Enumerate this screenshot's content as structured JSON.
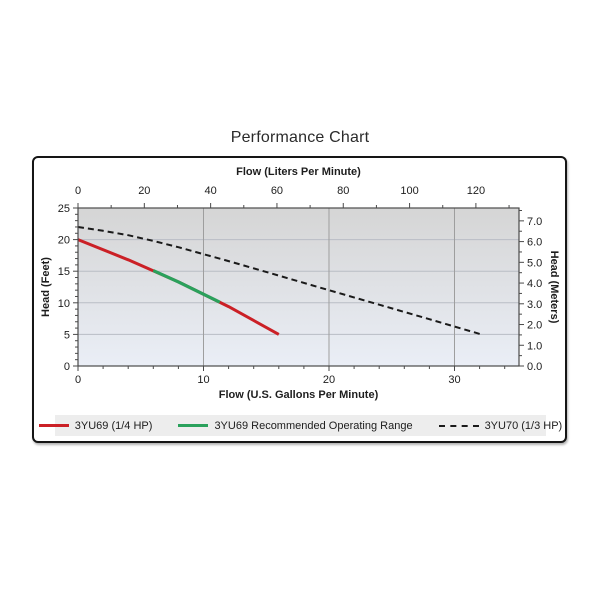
{
  "page": {
    "title": "Performance Chart"
  },
  "colors": {
    "red": "#cb2026",
    "green": "#2aa15c",
    "black": "#1a1a1a",
    "legend_bg": "#ededed",
    "plot_bg_top": "#d5d5d5",
    "plot_bg_bottom": "#eaeef6",
    "grid_vertical": "#9e9e9e",
    "grid_horizontal": "#b9bdc5",
    "axis": "#4a4a4a",
    "text": "#1d1d1d"
  },
  "chart_data": {
    "type": "line",
    "title": "Performance Chart",
    "x_axis_bottom": {
      "label": "Flow (U.S. Gallons Per Minute)",
      "min": 0,
      "max": 35.14,
      "major_ticks": [
        0,
        10,
        20,
        30
      ],
      "minor_step": 2
    },
    "x_axis_top": {
      "label": "Flow (Liters Per Minute)",
      "min": 0,
      "max": 133,
      "major_ticks": [
        0,
        20,
        40,
        60,
        80,
        100,
        120
      ],
      "minor_step": 10
    },
    "y_axis_left": {
      "label": "Head (Feet)",
      "min": 0,
      "max": 25,
      "major_ticks": [
        0,
        5,
        10,
        15,
        20,
        25
      ],
      "minor_step": 1
    },
    "y_axis_right": {
      "label": "Head (Meters)",
      "min": 0,
      "max": 7.62,
      "major_ticks": [
        0,
        1,
        2,
        3,
        4,
        5,
        6,
        7
      ],
      "tick_format": "0.0",
      "minor_step": 0.5
    },
    "grid": {
      "vertical_at": [
        10,
        20,
        30
      ],
      "horizontal_at": [
        5,
        10,
        15,
        20,
        25
      ]
    },
    "series": [
      {
        "name": "3YU69 (1/4 HP)",
        "color": "#cb2026",
        "style": "solid",
        "width": 3,
        "points": [
          [
            0,
            20
          ],
          [
            4,
            16.8
          ],
          [
            8,
            13.3
          ],
          [
            12,
            9.4
          ],
          [
            16,
            5
          ]
        ]
      },
      {
        "name": "3YU69 Recommended Operating Range",
        "color": "#2aa15c",
        "style": "solid",
        "width": 3.2,
        "points": [
          [
            6,
            15.1
          ],
          [
            8,
            13.3
          ],
          [
            11.3,
            10.1
          ]
        ]
      },
      {
        "name": "3YU70 (1/3 HP)",
        "color": "#1a1a1a",
        "style": "dashed",
        "width": 2,
        "points": [
          [
            0,
            22
          ],
          [
            2,
            21.4
          ],
          [
            4,
            20.7
          ],
          [
            6,
            19.8
          ],
          [
            8,
            18.8
          ],
          [
            12,
            16.6
          ],
          [
            16,
            14.3
          ],
          [
            20,
            12.0
          ],
          [
            24,
            9.7
          ],
          [
            28,
            7.4
          ],
          [
            32.3,
            4.9
          ]
        ]
      }
    ],
    "legend": {
      "position": "bottom",
      "entries": [
        "3YU69 (1/4 HP)",
        "3YU69 Recommended Operating Range",
        "3YU70 (1/3 HP)"
      ]
    }
  }
}
